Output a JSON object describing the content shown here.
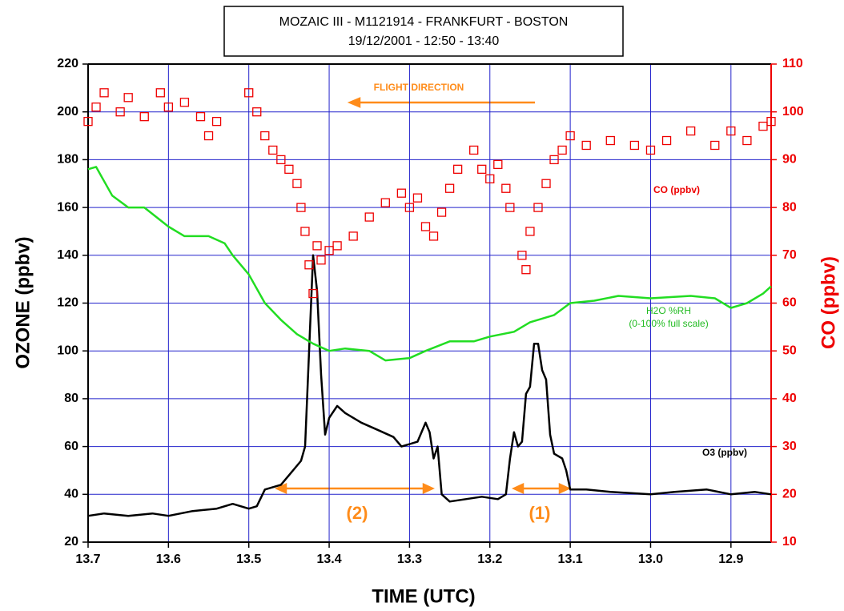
{
  "chart_data": {
    "type": "line",
    "title": "MOZAIC III - M1121914 - FRANKFURT - BOSTON",
    "subtitle": "19/12/2001 -  12:50 - 13:40",
    "x_label": "TIME (UTC)",
    "y_label": "OZONE (ppbv)",
    "y2_label": "CO (ppbv)",
    "xlim": [
      13.7,
      12.85
    ],
    "xticks": [
      13.7,
      13.6,
      13.5,
      13.4,
      13.3,
      13.2,
      13.1,
      {
        "value": 13,
        "label": "13.0"
      },
      12.9
    ],
    "ylim": [
      20,
      220
    ],
    "yticks": [
      20,
      40,
      60,
      80,
      100,
      120,
      140,
      160,
      180,
      200,
      220
    ],
    "y2lim": [
      10,
      110
    ],
    "y2ticks": [
      10,
      20,
      30,
      40,
      50,
      60,
      70,
      80,
      90,
      100,
      110
    ],
    "grid": true,
    "annotations": [
      "FLIGHT DIRECTION",
      "(0-100% full scale)",
      "(2)",
      "(1)"
    ],
    "series": [
      {
        "name": "O3 (ppbv)",
        "color": "#000000",
        "style": "line",
        "x": [
          13.7,
          13.68,
          13.65,
          13.62,
          13.6,
          13.57,
          13.54,
          13.52,
          13.5,
          13.49,
          13.48,
          13.46,
          13.45,
          13.44,
          13.435,
          13.43,
          13.425,
          13.42,
          13.415,
          13.41,
          13.405,
          13.4,
          13.39,
          13.38,
          13.36,
          13.34,
          13.32,
          13.31,
          13.29,
          13.28,
          13.275,
          13.27,
          13.265,
          13.26,
          13.25,
          13.23,
          13.21,
          13.19,
          13.18,
          13.175,
          13.17,
          13.165,
          13.16,
          13.155,
          13.15,
          13.145,
          13.14,
          13.135,
          13.13,
          13.125,
          13.12,
          13.11,
          13.105,
          13.1,
          13.08,
          13.05,
          13.0,
          12.97,
          12.93,
          12.9,
          12.87,
          12.85
        ],
        "values": [
          31,
          32,
          31,
          32,
          31,
          33,
          34,
          36,
          34,
          35,
          42,
          44,
          48,
          52,
          54,
          60,
          100,
          140,
          125,
          90,
          65,
          72,
          77,
          74,
          70,
          67,
          64,
          60,
          62,
          70,
          66,
          55,
          60,
          40,
          37,
          38,
          39,
          38,
          40,
          55,
          66,
          60,
          62,
          82,
          85,
          103,
          103,
          92,
          88,
          65,
          57,
          55,
          50,
          42,
          42,
          41,
          40,
          41,
          42,
          40,
          41,
          40
        ]
      },
      {
        "name": "H2O %RH",
        "color": "#22dd22",
        "style": "line",
        "x": [
          13.7,
          13.69,
          13.67,
          13.65,
          13.63,
          13.6,
          13.58,
          13.55,
          13.53,
          13.52,
          13.5,
          13.48,
          13.46,
          13.44,
          13.42,
          13.4,
          13.38,
          13.35,
          13.33,
          13.3,
          13.28,
          13.25,
          13.22,
          13.2,
          13.17,
          13.15,
          13.12,
          13.1,
          13.07,
          13.04,
          13.0,
          12.95,
          12.92,
          12.9,
          12.88,
          12.86,
          12.85
        ],
        "values": [
          176,
          177,
          165,
          160,
          160,
          152,
          148,
          148,
          145,
          140,
          132,
          120,
          113,
          107,
          103,
          100,
          101,
          100,
          96,
          97,
          100,
          104,
          104,
          106,
          108,
          112,
          115,
          120,
          121,
          123,
          122,
          123,
          122,
          118,
          120,
          124,
          127
        ]
      },
      {
        "name": "CO (ppbv)",
        "color": "#ee0000",
        "style": "markers",
        "axis": "y2",
        "x": [
          13.7,
          13.69,
          13.68,
          13.66,
          13.65,
          13.63,
          13.61,
          13.6,
          13.58,
          13.56,
          13.55,
          13.54,
          13.5,
          13.49,
          13.48,
          13.47,
          13.46,
          13.45,
          13.44,
          13.435,
          13.43,
          13.425,
          13.42,
          13.415,
          13.41,
          13.4,
          13.39,
          13.37,
          13.35,
          13.33,
          13.31,
          13.3,
          13.29,
          13.28,
          13.27,
          13.26,
          13.25,
          13.24,
          13.22,
          13.21,
          13.2,
          13.19,
          13.18,
          13.175,
          13.16,
          13.155,
          13.15,
          13.14,
          13.13,
          13.12,
          13.11,
          13.1,
          13.08,
          13.05,
          13.02,
          13.0,
          12.98,
          12.95,
          12.92,
          12.9,
          12.88,
          12.86,
          12.85
        ],
        "values": [
          98,
          101,
          104,
          100,
          103,
          99,
          104,
          101,
          102,
          99,
          95,
          98,
          104,
          100,
          95,
          92,
          90,
          88,
          85,
          80,
          75,
          68,
          62,
          72,
          69,
          71,
          72,
          74,
          78,
          81,
          83,
          80,
          82,
          76,
          74,
          79,
          84,
          88,
          92,
          88,
          86,
          89,
          84,
          80,
          70,
          67,
          75,
          80,
          85,
          90,
          92,
          95,
          93,
          94,
          93,
          92,
          94,
          96,
          93,
          96,
          94,
          97,
          98
        ]
      }
    ]
  }
}
